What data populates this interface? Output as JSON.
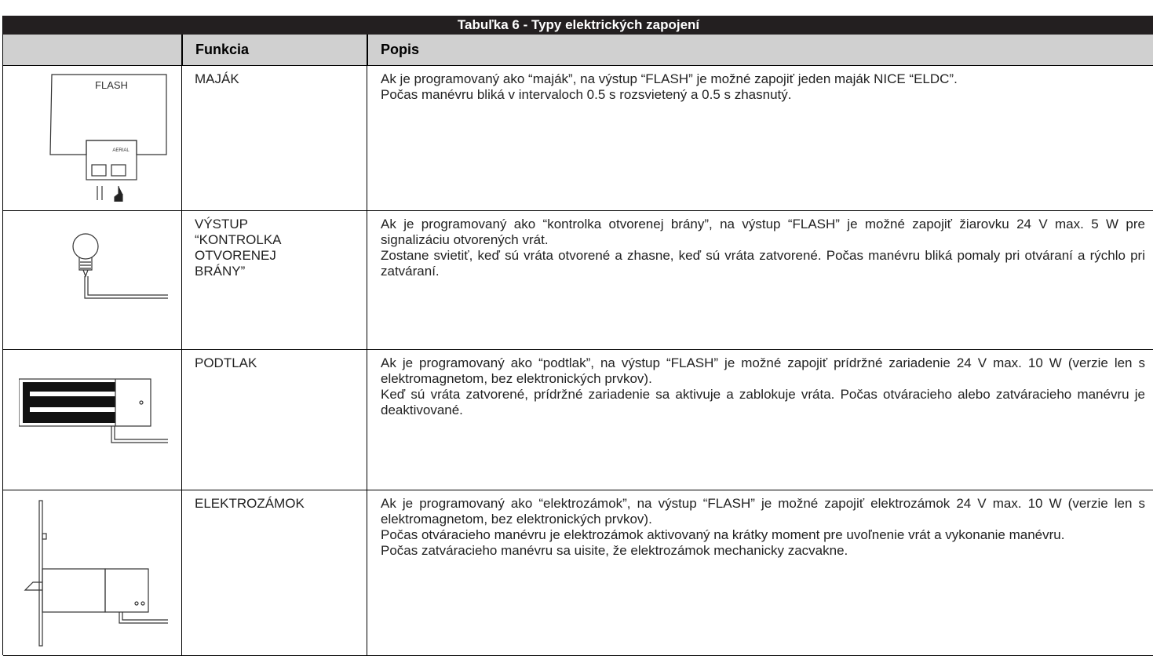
{
  "header": {
    "title": "Tabuľka 6 - Typy elektrických zapojení"
  },
  "table": {
    "columns": [
      "Funkcia",
      "Popis"
    ],
    "rows": [
      {
        "function": [
          "MAJÁK"
        ],
        "icon_texts": [
          "FLASH",
          "AERIAL"
        ],
        "description": [
          "Ak je programovaný ako “maják”, na výstup “FLASH” je možné zapojiť jeden maják NICE “ELDC”.",
          "Počas manévru bliká v intervaloch 0.5 s rozsvietený a 0.5 s zhasnutý."
        ]
      },
      {
        "function": [
          "VÝSTUP",
          "“KONTROLKA",
          "OTVORENEJ",
          "BRÁNY”"
        ],
        "description": [
          "Ak je programovaný ako “kontrolka otvorenej brány”, na výstup “FLASH” je možné zapojiť žiarovku 24 V max. 5 W pre signalizáciu otvorených vrát.",
          "Zostane svietiť, keď sú vráta otvorené a zhasne, keď sú vráta zatvorené. Počas manévru bliká pomaly pri otváraní a rýchlo pri zatváraní."
        ]
      },
      {
        "function": [
          "PODTLAK"
        ],
        "description": [
          "Ak je programovaný ako “podtlak”, na výstup “FLASH” je možné zapojiť prídržné zariadenie 24 V max. 10 W (verzie len s elektromagnetom, bez elektronických prvkov).",
          "Keď sú vráta zatvorené, prídržné zariadenie sa aktivuje a zablokuje vráta. Počas otváracieho alebo zatváracieho manévru je deaktivované."
        ]
      },
      {
        "function": [
          "ELEKTROZÁMOK"
        ],
        "description": [
          "Ak je programovaný ako “elektrozámok”, na výstup “FLASH” je možné zapojiť elektrozámok 24 V max. 10 W (verzie len s elektromagnetom, bez elektronických prvkov).",
          "Počas otváracieho manévru je elektrozámok aktivovaný na krátky moment pre uvoľnenie vrát a vykonanie manévru.",
          "Počas zatváracieho manévru sa uisite, že elektrozámok mechanicky zacvakne."
        ]
      }
    ]
  }
}
